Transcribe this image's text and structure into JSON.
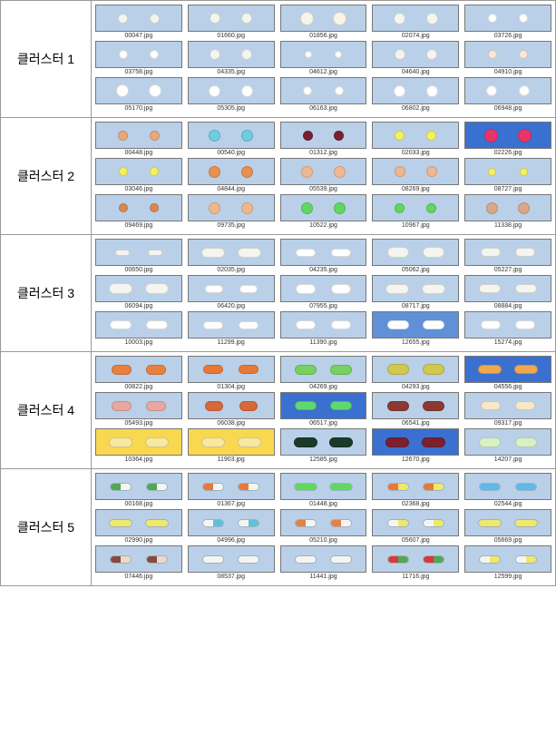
{
  "clusters": [
    {
      "label": "클러스터 1",
      "shape": "round",
      "rows": [
        [
          {
            "fn": "00047.jpg",
            "bg": "#b9d0e8",
            "c": [
              "#f5f5f0",
              "#f5f5f0"
            ],
            "sz": [
              11,
              11
            ]
          },
          {
            "fn": "01660.jpg",
            "bg": "#b9d0e8",
            "c": [
              "#f5f5f0",
              "#f5f5f0"
            ],
            "sz": [
              12,
              12
            ]
          },
          {
            "fn": "01856.jpg",
            "bg": "#b9d0e8",
            "c": [
              "#f8f5e8",
              "#f8f5e8"
            ],
            "sz": [
              15,
              15
            ]
          },
          {
            "fn": "02074.jpg",
            "bg": "#b9d0e8",
            "c": [
              "#f5f5f0",
              "#f5f5f0"
            ],
            "sz": [
              13,
              13
            ]
          },
          {
            "fn": "03726.jpg",
            "bg": "#b9d0e8",
            "c": [
              "#ffffff",
              "#ffffff"
            ],
            "sz": [
              10,
              10
            ]
          }
        ],
        [
          {
            "fn": "03758.jpg",
            "bg": "#b9d0e8",
            "c": [
              "#ffffff",
              "#ffffff"
            ],
            "sz": [
              10,
              10
            ]
          },
          {
            "fn": "04335.jpg",
            "bg": "#b9d0e8",
            "c": [
              "#f5f5f0",
              "#f5f5f0"
            ],
            "sz": [
              12,
              12
            ]
          },
          {
            "fn": "04612.jpg",
            "bg": "#b9d0e8",
            "c": [
              "#ffffff",
              "#ffffff"
            ],
            "sz": [
              8,
              8
            ]
          },
          {
            "fn": "04640.jpg",
            "bg": "#b9d0e8",
            "c": [
              "#f5f5f0",
              "#f5f5f0"
            ],
            "sz": [
              12,
              12
            ]
          },
          {
            "fn": "04910.jpg",
            "bg": "#b9d0e8",
            "c": [
              "#f8e8d8",
              "#f8e8d8"
            ],
            "sz": [
              10,
              10
            ]
          }
        ],
        [
          {
            "fn": "05170.jpg",
            "bg": "#b9d0e8",
            "c": [
              "#ffffff",
              "#ffffff"
            ],
            "sz": [
              14,
              14
            ]
          },
          {
            "fn": "05305.jpg",
            "bg": "#b9d0e8",
            "c": [
              "#ffffff",
              "#ffffff"
            ],
            "sz": [
              13,
              13
            ]
          },
          {
            "fn": "06163.jpg",
            "bg": "#b9d0e8",
            "c": [
              "#ffffff",
              "#ffffff"
            ],
            "sz": [
              10,
              10
            ]
          },
          {
            "fn": "06802.jpg",
            "bg": "#b9d0e8",
            "c": [
              "#ffffff",
              "#ffffff"
            ],
            "sz": [
              13,
              13
            ]
          },
          {
            "fn": "06948.jpg",
            "bg": "#b9d0e8",
            "c": [
              "#ffffff",
              "#ffffff"
            ],
            "sz": [
              12,
              12
            ]
          }
        ]
      ]
    },
    {
      "label": "클러스터 2",
      "shape": "round",
      "rows": [
        [
          {
            "fn": "00448.jpg",
            "bg": "#b9d0e8",
            "c": [
              "#e8a878",
              "#e8a878"
            ],
            "sz": [
              11,
              11
            ]
          },
          {
            "fn": "00540.jpg",
            "bg": "#b9d0e8",
            "c": [
              "#6ecde0",
              "#6ecde0"
            ],
            "sz": [
              13,
              13
            ]
          },
          {
            "fn": "01312.jpg",
            "bg": "#b9d0e8",
            "c": [
              "#7a2030",
              "#7a2030"
            ],
            "sz": [
              11,
              11
            ]
          },
          {
            "fn": "02033.jpg",
            "bg": "#b9d0e8",
            "c": [
              "#f5f060",
              "#f5f060"
            ],
            "sz": [
              11,
              11
            ]
          },
          {
            "fn": "02226.jpg",
            "bg": "#3a70d0",
            "c": [
              "#e8356a",
              "#e8356a"
            ],
            "sz": [
              15,
              15
            ]
          }
        ],
        [
          {
            "fn": "03046.jpg",
            "bg": "#b9d0e8",
            "c": [
              "#f5f060",
              "#f5f060"
            ],
            "sz": [
              10,
              10
            ]
          },
          {
            "fn": "04844.jpg",
            "bg": "#b9d0e8",
            "c": [
              "#e89050",
              "#e89050"
            ],
            "sz": [
              13,
              13
            ]
          },
          {
            "fn": "05539.jpg",
            "bg": "#b9d0e8",
            "c": [
              "#f0b890",
              "#f0b890"
            ],
            "sz": [
              13,
              13
            ]
          },
          {
            "fn": "08269.jpg",
            "bg": "#b9d0e8",
            "c": [
              "#f0b890",
              "#f0b890"
            ],
            "sz": [
              12,
              12
            ]
          },
          {
            "fn": "08727.jpg",
            "bg": "#b9d0e8",
            "c": [
              "#f5f060",
              "#f5f060"
            ],
            "sz": [
              9,
              9
            ]
          }
        ],
        [
          {
            "fn": "09469.jpg",
            "bg": "#b9d0e8",
            "c": [
              "#d88850",
              "#d88850"
            ],
            "sz": [
              10,
              10
            ]
          },
          {
            "fn": "09735.jpg",
            "bg": "#b9d0e8",
            "c": [
              "#f0b88a",
              "#f0b88a"
            ],
            "sz": [
              13,
              13
            ]
          },
          {
            "fn": "10522.jpg",
            "bg": "#b9d0e8",
            "c": [
              "#60d860",
              "#60d860"
            ],
            "sz": [
              13,
              13
            ]
          },
          {
            "fn": "10967.jpg",
            "bg": "#b9d0e8",
            "c": [
              "#60d860",
              "#60d860"
            ],
            "sz": [
              11,
              11
            ]
          },
          {
            "fn": "11338.jpg",
            "bg": "#b9d0e8",
            "c": [
              "#d8a888",
              "#d8a888"
            ],
            "sz": [
              13,
              13
            ]
          }
        ]
      ]
    },
    {
      "label": "클러스터 3",
      "shape": "oblong",
      "rows": [
        [
          {
            "fn": "00650.jpg",
            "bg": "#b9d0e8",
            "c": [
              "#f5f5f0",
              "#f5f5f0"
            ],
            "sz": [
              16,
              7
            ]
          },
          {
            "fn": "02035.jpg",
            "bg": "#b9d0e8",
            "c": [
              "#f5f5f0",
              "#f5f5f0"
            ],
            "sz": [
              26,
              11
            ]
          },
          {
            "fn": "04235.jpg",
            "bg": "#b9d0e8",
            "c": [
              "#ffffff",
              "#ffffff"
            ],
            "sz": [
              22,
              9
            ]
          },
          {
            "fn": "05062.jpg",
            "bg": "#b9d0e8",
            "c": [
              "#f5f5f0",
              "#f5f5f0"
            ],
            "sz": [
              24,
              12
            ]
          },
          {
            "fn": "05227.jpg",
            "bg": "#b9d0e8",
            "c": [
              "#f5f5f0",
              "#f5f5f0"
            ],
            "sz": [
              22,
              10
            ]
          }
        ],
        [
          {
            "fn": "06094.jpg",
            "bg": "#b9d0e8",
            "c": [
              "#f5f5f0",
              "#f5f5f0"
            ],
            "sz": [
              26,
              12
            ]
          },
          {
            "fn": "06420.jpg",
            "bg": "#b9d0e8",
            "c": [
              "#ffffff",
              "#ffffff"
            ],
            "sz": [
              20,
              9
            ]
          },
          {
            "fn": "07955.jpg",
            "bg": "#b9d0e8",
            "c": [
              "#ffffff",
              "#ffffff"
            ],
            "sz": [
              22,
              11
            ]
          },
          {
            "fn": "08717.jpg",
            "bg": "#b9d0e8",
            "c": [
              "#f5f5f0",
              "#f5f5f0"
            ],
            "sz": [
              26,
              11
            ]
          },
          {
            "fn": "08884.jpg",
            "bg": "#b9d0e8",
            "c": [
              "#f5f5f0",
              "#f5f5f0"
            ],
            "sz": [
              24,
              10
            ]
          }
        ],
        [
          {
            "fn": "10003.jpg",
            "bg": "#b9d0e8",
            "c": [
              "#ffffff",
              "#ffffff"
            ],
            "sz": [
              24,
              10
            ]
          },
          {
            "fn": "11299.jpg",
            "bg": "#b9d0e8",
            "c": [
              "#ffffff",
              "#ffffff"
            ],
            "sz": [
              22,
              9
            ]
          },
          {
            "fn": "11390.jpg",
            "bg": "#b9d0e8",
            "c": [
              "#ffffff",
              "#ffffff"
            ],
            "sz": [
              22,
              10
            ]
          },
          {
            "fn": "12655.jpg",
            "bg": "#6090d8",
            "c": [
              "#ffffff",
              "#ffffff"
            ],
            "sz": [
              24,
              10
            ]
          },
          {
            "fn": "15274.jpg",
            "bg": "#b9d0e8",
            "c": [
              "#ffffff",
              "#ffffff"
            ],
            "sz": [
              22,
              10
            ]
          }
        ]
      ]
    },
    {
      "label": "클러스터 4",
      "shape": "oblong",
      "rows": [
        [
          {
            "fn": "00822.jpg",
            "bg": "#b9d0e8",
            "c": [
              "#e88040",
              "#e88040"
            ],
            "sz": [
              22,
              11
            ]
          },
          {
            "fn": "01304.jpg",
            "bg": "#b9d0e8",
            "c": [
              "#e87838",
              "#e87838"
            ],
            "sz": [
              22,
              10
            ]
          },
          {
            "fn": "04269.jpg",
            "bg": "#b9d0e8",
            "c": [
              "#78d060",
              "#78d060"
            ],
            "sz": [
              24,
              11
            ]
          },
          {
            "fn": "04293.jpg",
            "bg": "#b9d0e8",
            "c": [
              "#d0c850",
              "#d0c850"
            ],
            "sz": [
              24,
              12
            ]
          },
          {
            "fn": "04556.jpg",
            "bg": "#3a70d0",
            "c": [
              "#f0a850",
              "#f0a850"
            ],
            "sz": [
              26,
              10
            ]
          }
        ],
        [
          {
            "fn": "05493.jpg",
            "bg": "#b9d0e8",
            "c": [
              "#e8a8a0",
              "#e8a8a0"
            ],
            "sz": [
              22,
              11
            ]
          },
          {
            "fn": "06038.jpg",
            "bg": "#b9d0e8",
            "c": [
              "#d86838",
              "#d86838"
            ],
            "sz": [
              20,
              11
            ]
          },
          {
            "fn": "06517.jpg",
            "bg": "#3a70d0",
            "c": [
              "#60d870",
              "#60d870"
            ],
            "sz": [
              24,
              10
            ]
          },
          {
            "fn": "06541.jpg",
            "bg": "#b9d0e8",
            "c": [
              "#8a3a30",
              "#8a3a30"
            ],
            "sz": [
              24,
              11
            ]
          },
          {
            "fn": "09317.jpg",
            "bg": "#b9d0e8",
            "c": [
              "#f8e8c8",
              "#f8e8c8"
            ],
            "sz": [
              22,
              10
            ]
          }
        ],
        [
          {
            "fn": "10364.jpg",
            "bg": "#f8d850",
            "c": [
              "#f8e8a0",
              "#f8e8a0"
            ],
            "sz": [
              26,
              11
            ]
          },
          {
            "fn": "11903.jpg",
            "bg": "#f8d850",
            "c": [
              "#f8e8a0",
              "#f8e8a0"
            ],
            "sz": [
              26,
              11
            ]
          },
          {
            "fn": "12585.jpg",
            "bg": "#b9d0e8",
            "c": [
              "#1a3a2a",
              "#1a3a2a"
            ],
            "sz": [
              26,
              11
            ]
          },
          {
            "fn": "12670.jpg",
            "bg": "#3a70d0",
            "c": [
              "#7a2030",
              "#7a2030"
            ],
            "sz": [
              26,
              11
            ]
          },
          {
            "fn": "14207.jpg",
            "bg": "#b9d0e8",
            "c": [
              "#d8f0c8",
              "#d8f0c8"
            ],
            "sz": [
              24,
              11
            ]
          }
        ]
      ]
    },
    {
      "label": "클러스터 5",
      "shape": "capsule",
      "rows": [
        [
          {
            "fn": "00168.jpg",
            "bg": "#b9d0e8",
            "c": [
              "#50a850",
              "#f5f5f0"
            ],
            "sz": [
              24,
              9
            ]
          },
          {
            "fn": "01367.jpg",
            "bg": "#b9d0e8",
            "c": [
              "#e87838",
              "#f5f5f0"
            ],
            "sz": [
              24,
              9
            ]
          },
          {
            "fn": "01448.jpg",
            "bg": "#b9d0e8",
            "c": [
              "#60d860",
              "#60d860"
            ],
            "sz": [
              26,
              9
            ]
          },
          {
            "fn": "02368.jpg",
            "bg": "#b9d0e8",
            "c": [
              "#e87838",
              "#f0e868"
            ],
            "sz": [
              24,
              9
            ]
          },
          {
            "fn": "02544.jpg",
            "bg": "#b9d0e8",
            "c": [
              "#60b8e8",
              "#60b8e8"
            ],
            "sz": [
              24,
              9
            ]
          }
        ],
        [
          {
            "fn": "02990.jpg",
            "bg": "#b9d0e8",
            "c": [
              "#f0e868",
              "#f0e868"
            ],
            "sz": [
              26,
              9
            ]
          },
          {
            "fn": "04996.jpg",
            "bg": "#b9d0e8",
            "c": [
              "#f5f5f0",
              "#60c0d8"
            ],
            "sz": [
              24,
              9
            ]
          },
          {
            "fn": "05210.jpg",
            "bg": "#b9d0e8",
            "c": [
              "#e88040",
              "#f5f5f0"
            ],
            "sz": [
              24,
              9
            ]
          },
          {
            "fn": "05607.jpg",
            "bg": "#b9d0e8",
            "c": [
              "#f5f5f0",
              "#f0e868"
            ],
            "sz": [
              24,
              9
            ]
          },
          {
            "fn": "05669.jpg",
            "bg": "#b9d0e8",
            "c": [
              "#f0e868",
              "#f0e868"
            ],
            "sz": [
              26,
              9
            ]
          }
        ],
        [
          {
            "fn": "07446.jpg",
            "bg": "#b9d0e8",
            "c": [
              "#8a4a3a",
              "#f0d8c8"
            ],
            "sz": [
              24,
              9
            ]
          },
          {
            "fn": "08537.jpg",
            "bg": "#b9d0e8",
            "c": [
              "#f5f5f0",
              "#f5f5f0"
            ],
            "sz": [
              24,
              9
            ]
          },
          {
            "fn": "11441.jpg",
            "bg": "#b9d0e8",
            "c": [
              "#f5f5f0",
              "#f5f5f0"
            ],
            "sz": [
              24,
              9
            ]
          },
          {
            "fn": "11716.jpg",
            "bg": "#b9d0e8",
            "c": [
              "#d83838",
              "#50a850"
            ],
            "sz": [
              24,
              9
            ]
          },
          {
            "fn": "12599.jpg",
            "bg": "#b9d0e8",
            "c": [
              "#f5f5f0",
              "#f0e868"
            ],
            "sz": [
              24,
              9
            ]
          }
        ]
      ]
    }
  ]
}
